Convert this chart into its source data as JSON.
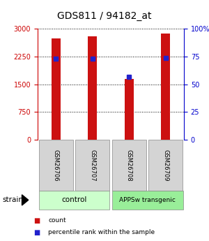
{
  "title": "GDS811 / 94182_at",
  "samples": [
    "GSM26706",
    "GSM26707",
    "GSM26708",
    "GSM26709"
  ],
  "red_values": [
    2750,
    2800,
    1650,
    2870
  ],
  "blue_pct": [
    73,
    73,
    57,
    74
  ],
  "y_max": 3000,
  "y_ticks": [
    0,
    750,
    1500,
    2250,
    3000
  ],
  "y_pct_ticks": [
    0,
    25,
    50,
    75,
    100
  ],
  "groups": [
    {
      "label": "control",
      "indices": [
        0,
        1
      ],
      "color": "#ccffcc"
    },
    {
      "label": "APPSw transgenic",
      "indices": [
        2,
        3
      ],
      "color": "#99ee99"
    }
  ],
  "bar_width": 0.25,
  "red_color": "#cc1111",
  "blue_color": "#2222cc",
  "bg_color": "#ffffff",
  "xlabel_color": "#cc0000",
  "ylabel_right_color": "#0000cc",
  "strain_label": "strain",
  "legend_count": "count",
  "legend_pct": "percentile rank within the sample"
}
